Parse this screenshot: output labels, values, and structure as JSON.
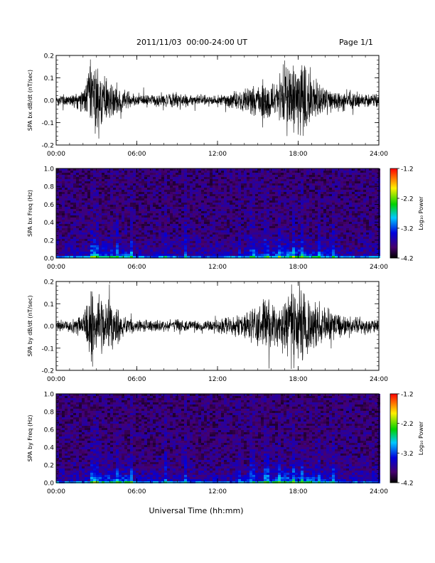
{
  "header": {
    "title": "2011/11/03  00:00-24:00 UT",
    "page": "Page 1/1"
  },
  "xaxis": {
    "label": "Universal Time (hh:mm)",
    "ticks": [
      "00:00",
      "06:00",
      "12:00",
      "18:00",
      "24:00"
    ]
  },
  "colorbar": {
    "label": "Log₁₀ Power",
    "ticks": [
      "-1.2",
      "-2.2",
      "-3.2",
      "-4.2"
    ]
  },
  "chart_data": [
    {
      "type": "line",
      "ylabel": "SPA bx dB/dt (nT/sec)",
      "xlim": [
        0,
        24
      ],
      "ylim": [
        -0.2,
        0.2
      ],
      "yticks": [
        "0.2",
        "0.1",
        "0.0",
        "-0.1",
        "-0.2"
      ],
      "envelope": {
        "x": [
          0,
          1,
          2,
          2.5,
          3,
          3.5,
          4,
          4.5,
          5,
          6,
          7,
          8,
          9,
          10,
          11,
          12,
          13,
          14,
          15,
          15.5,
          16,
          16.5,
          17,
          17.5,
          18,
          18.5,
          19,
          20,
          21,
          22,
          23,
          24
        ],
        "amplitude": [
          0.03,
          0.035,
          0.06,
          0.2,
          0.2,
          0.12,
          0.12,
          0.08,
          0.05,
          0.035,
          0.03,
          0.035,
          0.04,
          0.03,
          0.03,
          0.03,
          0.04,
          0.06,
          0.08,
          0.12,
          0.12,
          0.1,
          0.2,
          0.2,
          0.2,
          0.18,
          0.12,
          0.08,
          0.06,
          0.05,
          0.04,
          0.03
        ]
      }
    },
    {
      "type": "heatmap",
      "ylabel": "SPA bx Freq (Hz)",
      "xlim": [
        0,
        24
      ],
      "ylim": [
        0,
        1.0
      ],
      "yticks": [
        "1.0",
        "0.8",
        "0.6",
        "0.4",
        "0.2",
        "0.0"
      ],
      "zlim": [
        -4.2,
        -1.2
      ]
    },
    {
      "type": "line",
      "ylabel": "SPA by dB/dt (nT/sec)",
      "xlim": [
        0,
        24
      ],
      "ylim": [
        -0.2,
        0.2
      ],
      "yticks": [
        "0.2",
        "0.1",
        "0.0",
        "-0.1",
        "-0.2"
      ],
      "envelope": {
        "x": [
          0,
          1,
          2,
          2.5,
          3,
          3.5,
          4,
          4.5,
          5,
          6,
          7,
          8,
          9,
          10,
          11,
          12,
          13,
          14,
          15,
          15.5,
          16,
          16.5,
          17,
          17.5,
          18,
          18.5,
          19,
          20,
          21,
          22,
          23,
          24
        ],
        "amplitude": [
          0.03,
          0.035,
          0.05,
          0.2,
          0.2,
          0.15,
          0.15,
          0.1,
          0.05,
          0.035,
          0.03,
          0.03,
          0.035,
          0.03,
          0.03,
          0.04,
          0.05,
          0.07,
          0.1,
          0.15,
          0.12,
          0.1,
          0.15,
          0.2,
          0.2,
          0.2,
          0.15,
          0.1,
          0.07,
          0.05,
          0.04,
          0.03
        ]
      }
    },
    {
      "type": "heatmap",
      "ylabel": "SPA by Freq (Hz)",
      "xlim": [
        0,
        24
      ],
      "ylim": [
        0,
        1.0
      ],
      "yticks": [
        "1.0",
        "0.8",
        "0.6",
        "0.4",
        "0.2",
        "0.0"
      ],
      "zlim": [
        -4.2,
        -1.2
      ]
    }
  ]
}
